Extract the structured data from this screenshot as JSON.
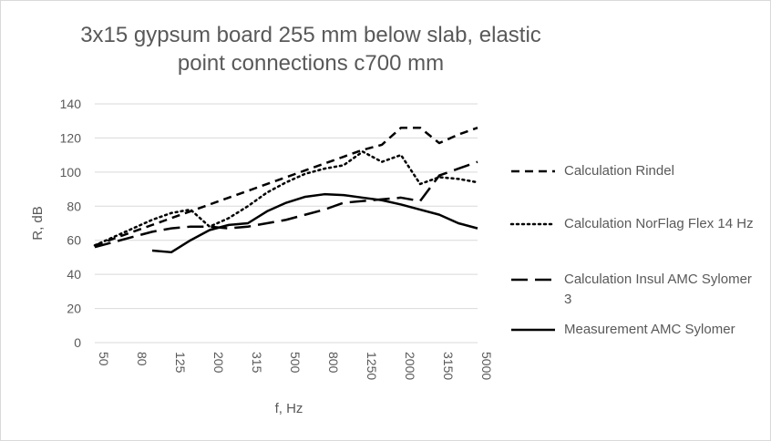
{
  "chart_data": {
    "type": "line",
    "title": "3x15 gypsum board 255 mm below slab, elastic point connections c700 mm",
    "xlabel": "f, Hz",
    "ylabel": "R, dB",
    "ylim": [
      0,
      140
    ],
    "yticks": [
      0,
      20,
      40,
      60,
      80,
      100,
      120,
      140
    ],
    "grid": "horizontal",
    "legend_placement": "right",
    "x": [
      50,
      63,
      80,
      100,
      125,
      160,
      200,
      250,
      315,
      400,
      500,
      630,
      800,
      1000,
      1250,
      1600,
      2000,
      2500,
      3150,
      4000,
      5000
    ],
    "xtick_labels": [
      "50",
      "80",
      "125",
      "200",
      "315",
      "500",
      "800",
      "1250",
      "2000",
      "3150",
      "5000"
    ],
    "series": [
      {
        "name": "Calculation Rindel",
        "style": "dash",
        "values": [
          57,
          61,
          65,
          69,
          73,
          77,
          81,
          85,
          89,
          93,
          97,
          101,
          105,
          109,
          113,
          116,
          126,
          126,
          117,
          122,
          126
        ]
      },
      {
        "name": "Calculation NorFlag Flex 14 Hz",
        "style": "dot",
        "values": [
          57,
          62,
          67,
          72,
          76,
          78,
          68,
          73,
          80,
          88,
          94,
          99,
          102,
          104,
          112,
          106,
          110,
          93,
          97,
          96,
          94
        ]
      },
      {
        "name": "Calculation Insul AMC Sylomer 3",
        "style": "longdash",
        "values": [
          56,
          59,
          62,
          65,
          67,
          68,
          68,
          67,
          68,
          70,
          72,
          75,
          78,
          82,
          83,
          84,
          85,
          83,
          98,
          102,
          106
        ]
      },
      {
        "name": "Measurement  AMC Sylomer",
        "style": "solid",
        "values": [
          null,
          null,
          null,
          54,
          53,
          60,
          66,
          69,
          70,
          77,
          82,
          85.5,
          87,
          86.5,
          85,
          83.5,
          81,
          78,
          75,
          70,
          67
        ]
      }
    ]
  }
}
